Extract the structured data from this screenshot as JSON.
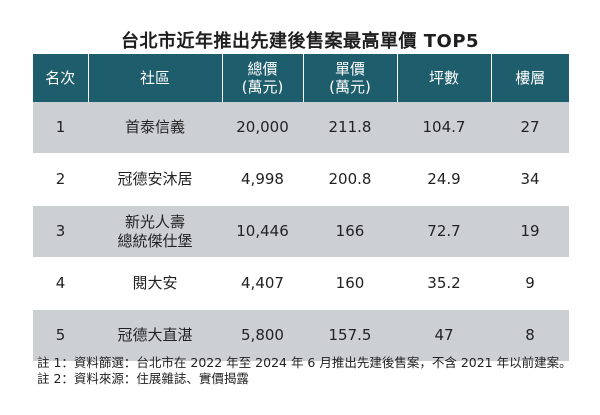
{
  "title": "台北市近年推出先建後售案最高單價 TOP5",
  "colors": {
    "header_bg": "#1e5d6c",
    "row_shade": "#cdd0d3",
    "row_plain": "#ffffff"
  },
  "table": {
    "headers": [
      {
        "line1": "名次",
        "line2": ""
      },
      {
        "line1": "社區",
        "line2": ""
      },
      {
        "line1": "總價",
        "line2": "(萬元)"
      },
      {
        "line1": "單價",
        "line2": "(萬元)"
      },
      {
        "line1": "坪數",
        "line2": ""
      },
      {
        "line1": "樓層",
        "line2": ""
      }
    ],
    "rows": [
      {
        "rank": "1",
        "name1": "首泰信義",
        "name2": "",
        "total": "20,000",
        "unit": "211.8",
        "ping": "104.7",
        "floor": "27"
      },
      {
        "rank": "2",
        "name1": "冠德安沐居",
        "name2": "",
        "total": "4,998",
        "unit": "200.8",
        "ping": "24.9",
        "floor": "34"
      },
      {
        "rank": "3",
        "name1": "新光人壽",
        "name2": "總統傑仕堡",
        "total": "10,446",
        "unit": "166",
        "ping": "72.7",
        "floor": "19"
      },
      {
        "rank": "4",
        "name1": "閱大安",
        "name2": "",
        "total": "4,407",
        "unit": "160",
        "ping": "35.2",
        "floor": "9"
      },
      {
        "rank": "5",
        "name1": "冠德大直湛",
        "name2": "",
        "total": "5,800",
        "unit": "157.5",
        "ping": "47",
        "floor": "8"
      }
    ]
  },
  "notes": [
    "註 1：資料篩選：台北市在 2022 年至 2024 年 6 月推出先建後售案，不含 2021 年以前建案。",
    "註 2：資料來源：住展雜誌、實價揭露"
  ]
}
